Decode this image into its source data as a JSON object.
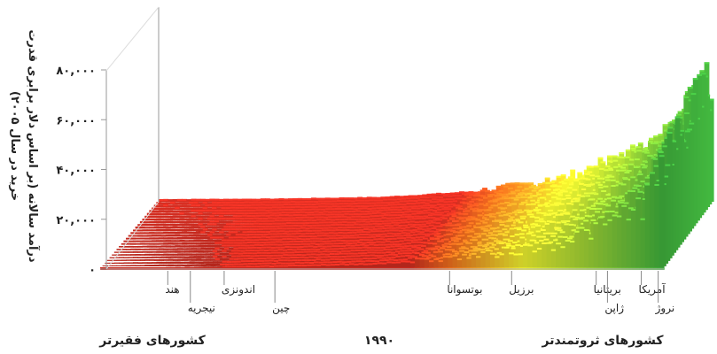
{
  "chart_data": {
    "type": "area",
    "title": "",
    "ylabel_line1": "درآمد سالانه (بر اساس دلار برابری قدرت",
    "ylabel_line2": "خرید در سال ۲۰۰۵)",
    "y_ticks": [
      "۰",
      "۲۰,۰۰۰",
      "۴۰,۰۰۰",
      "۶۰,۰۰۰",
      "۸۰,۰۰۰"
    ],
    "ylim": [
      0,
      90000
    ],
    "year_label": "۱۹۹۰",
    "poorer_label": "کشورهای فقیرتر",
    "richer_label": "کشورهای ثروتمندتر",
    "country_labels": [
      {
        "name": "هند",
        "rank": 0.12,
        "level": 1
      },
      {
        "name": "نیجریه",
        "rank": 0.16,
        "level": 2
      },
      {
        "name": "اندونزی",
        "rank": 0.22,
        "level": 1
      },
      {
        "name": "چین",
        "rank": 0.31,
        "level": 2
      },
      {
        "name": "بوتسوانا",
        "rank": 0.62,
        "level": 1
      },
      {
        "name": "برزیل",
        "rank": 0.73,
        "level": 1
      },
      {
        "name": "بریتانیا",
        "rank": 0.88,
        "level": 1
      },
      {
        "name": "ژاپن",
        "rank": 0.9,
        "level": 2
      },
      {
        "name": "آمریکا",
        "rank": 0.96,
        "level": 1
      },
      {
        "name": "نروژ",
        "rank": 0.99,
        "level": 2
      }
    ],
    "front_profile": [
      {
        "rank": 0.0,
        "income": 300
      },
      {
        "rank": 0.1,
        "income": 700
      },
      {
        "rank": 0.2,
        "income": 1000
      },
      {
        "rank": 0.3,
        "income": 1500
      },
      {
        "rank": 0.4,
        "income": 2000
      },
      {
        "rank": 0.5,
        "income": 2600
      },
      {
        "rank": 0.6,
        "income": 4500
      },
      {
        "rank": 0.7,
        "income": 6500
      },
      {
        "rank": 0.8,
        "income": 10000
      },
      {
        "rank": 0.9,
        "income": 18000
      },
      {
        "rank": 0.96,
        "income": 26000
      },
      {
        "rank": 1.0,
        "income": 40000
      }
    ],
    "back_profile": [
      {
        "rank": 0.0,
        "income": 1200
      },
      {
        "rank": 0.2,
        "income": 1400
      },
      {
        "rank": 0.4,
        "income": 2200
      },
      {
        "rank": 0.55,
        "income": 4500
      },
      {
        "rank": 0.65,
        "income": 7500
      },
      {
        "rank": 0.75,
        "income": 12000
      },
      {
        "rank": 0.85,
        "income": 21000
      },
      {
        "rank": 0.93,
        "income": 32000
      },
      {
        "rank": 0.97,
        "income": 48000
      },
      {
        "rank": 1.0,
        "income": 58000
      }
    ],
    "colors": {
      "poor": "#c62a1f",
      "mid_orange": "#e56a1c",
      "mid_yellow": "#e6e82d",
      "rich": "#3aa83a"
    }
  }
}
